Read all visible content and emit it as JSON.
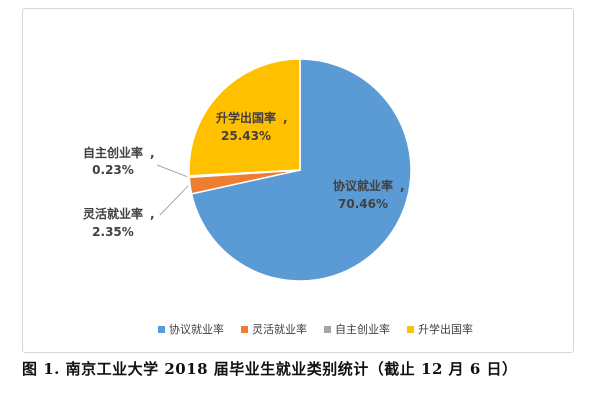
{
  "chart_data": {
    "type": "pie",
    "title": "",
    "slices": [
      {
        "label": "协议就业率",
        "value": 70.46,
        "display": "70.46%",
        "color": "#5b9bd5"
      },
      {
        "label": "灵活就业率",
        "value": 2.35,
        "display": "2.35%",
        "color": "#ed7d31"
      },
      {
        "label": "自主创业率",
        "value": 0.23,
        "display": "0.23%",
        "color": "#a5a5a5"
      },
      {
        "label": "升学出国率",
        "value": 25.43,
        "display": "25.43%",
        "color": "#ffc000"
      }
    ],
    "legend_position": "bottom",
    "start_angle_deg": 0,
    "direction": "clockwise"
  },
  "caption": "图 1.  南京工业大学 2018 届毕业生就业类别统计（截止 12 月 6 日）"
}
